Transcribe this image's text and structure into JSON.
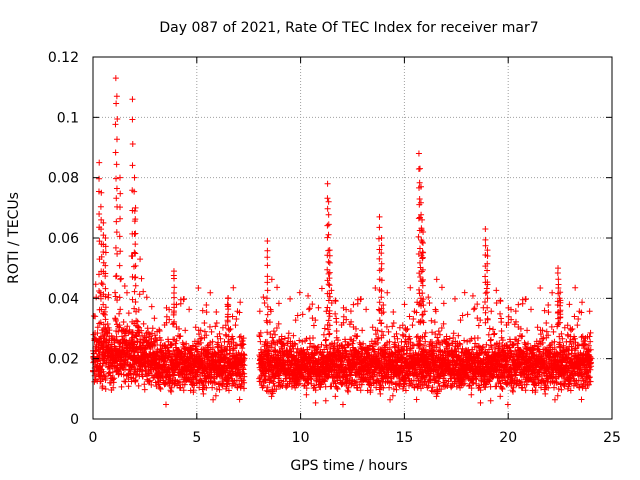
{
  "chart_data": {
    "type": "scatter",
    "title": "Day 087 of 2021, Rate Of TEC Index for receiver mar7",
    "xlabel": "GPS time / hours",
    "ylabel": "ROTI / TECUs",
    "xlim": [
      0,
      25
    ],
    "ylim": [
      0,
      0.12
    ],
    "xticks": [
      0,
      5,
      10,
      15,
      20,
      25
    ],
    "xtick_labels": [
      "0",
      "5",
      "10",
      "15",
      "20",
      "25"
    ],
    "yticks": [
      0,
      0.02,
      0.04,
      0.06,
      0.08,
      0.1,
      0.12
    ],
    "ytick_labels": [
      "0",
      "0.02",
      "0.04",
      "0.06",
      "0.08",
      "0.1",
      "0.12"
    ],
    "grid": true,
    "marker": "plus",
    "color": "#ff0000",
    "data_gap_hours": [
      7.3,
      8.0
    ],
    "band": {
      "x_start": 0.0,
      "x_end": 24.0,
      "y_low": 0.008,
      "y_high": 0.032,
      "dense_core": 0.018
    },
    "peaks": [
      {
        "x": 0.3,
        "y": 0.085
      },
      {
        "x": 0.4,
        "y": 0.075
      },
      {
        "x": 0.5,
        "y": 0.065
      },
      {
        "x": 0.6,
        "y": 0.06
      },
      {
        "x": 1.1,
        "y": 0.113
      },
      {
        "x": 1.15,
        "y": 0.107
      },
      {
        "x": 1.3,
        "y": 0.08
      },
      {
        "x": 1.9,
        "y": 0.106
      },
      {
        "x": 2.0,
        "y": 0.08
      },
      {
        "x": 2.05,
        "y": 0.07
      },
      {
        "x": 3.9,
        "y": 0.049
      },
      {
        "x": 6.5,
        "y": 0.04
      },
      {
        "x": 8.4,
        "y": 0.059
      },
      {
        "x": 11.3,
        "y": 0.078
      },
      {
        "x": 11.35,
        "y": 0.072
      },
      {
        "x": 11.4,
        "y": 0.056
      },
      {
        "x": 13.8,
        "y": 0.067
      },
      {
        "x": 13.9,
        "y": 0.06
      },
      {
        "x": 15.7,
        "y": 0.088
      },
      {
        "x": 15.75,
        "y": 0.083
      },
      {
        "x": 15.8,
        "y": 0.077
      },
      {
        "x": 15.85,
        "y": 0.066
      },
      {
        "x": 15.9,
        "y": 0.062
      },
      {
        "x": 18.9,
        "y": 0.063
      },
      {
        "x": 19.0,
        "y": 0.056
      },
      {
        "x": 22.4,
        "y": 0.05
      },
      {
        "x": 22.5,
        "y": 0.042
      }
    ]
  }
}
